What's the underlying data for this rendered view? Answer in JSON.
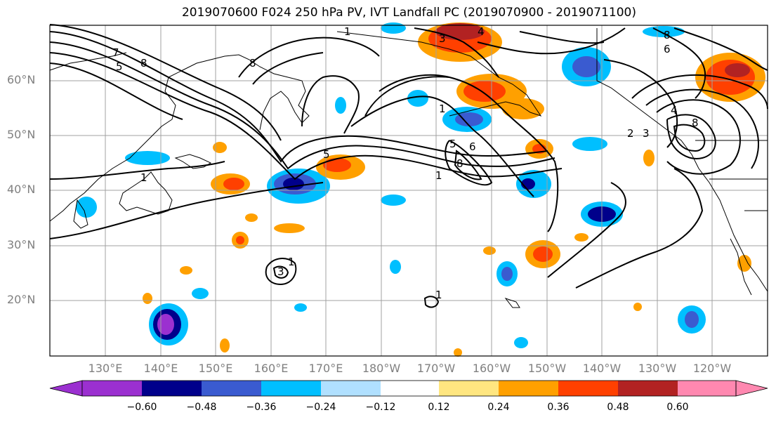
{
  "title": "2019070600 F024 250 hPa PV, IVT Landfall PC (2019070900 - 2019071100)",
  "lat_labels": [
    "60°N",
    "50°N",
    "40°N",
    "30°N",
    "20°N"
  ],
  "lon_labels": [
    "130°E",
    "140°E",
    "150°E",
    "160°E",
    "170°E",
    "180°W",
    "170°W",
    "160°W",
    "150°W",
    "140°W",
    "130°W",
    "120°W"
  ],
  "colorbar": {
    "ticks": [
      "−0.60",
      "−0.48",
      "−0.36",
      "−0.24",
      "−0.12",
      "0.12",
      "0.24",
      "0.36",
      "0.48",
      "0.60"
    ],
    "colors": [
      "#9b30d0",
      "#00008b",
      "#3a5bd0",
      "#00bfff",
      "#b0e0ff",
      "#ffffff",
      "#ffe680",
      "#ffa000",
      "#ff4000",
      "#b22222",
      "#ff88b0"
    ]
  },
  "contour_labels": [
    "1",
    "2",
    "3",
    "4",
    "5",
    "6",
    "7",
    "8"
  ],
  "colors": {
    "land_line": "#000000",
    "grid": "#a0a0a0",
    "label_gray": "#808080"
  }
}
